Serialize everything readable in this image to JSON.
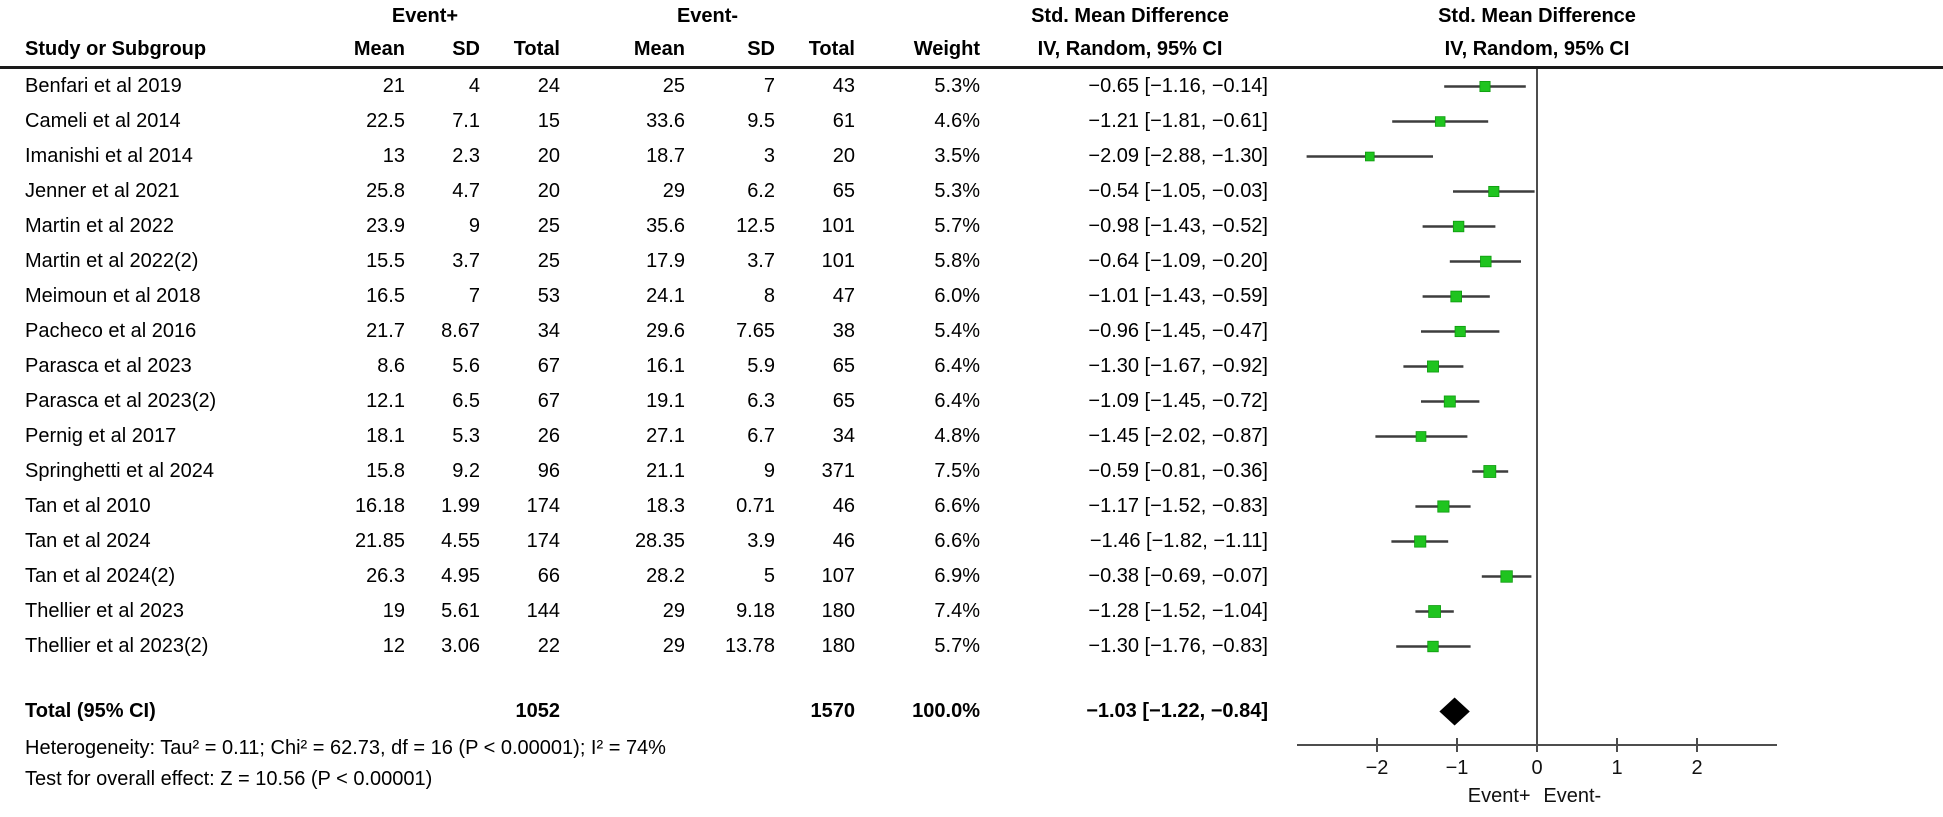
{
  "headers": {
    "study": "Study or Subgroup",
    "group1": "Event+",
    "group2": "Event-",
    "mean": "Mean",
    "sd": "SD",
    "total": "Total",
    "weight": "Weight",
    "smd_line1": "Std. Mean Difference",
    "smd_line2": "IV, Random, 95% CI",
    "plot_line1": "Std. Mean Difference",
    "plot_line2": "IV, Random, 95% CI"
  },
  "footnotes": {
    "heterogeneity": "Heterogeneity: Tau² = 0.11; Chi² = 62.73, df = 16 (P < 0.00001); I² = 74%",
    "overall_effect": "Test for overall effect: Z = 10.56 (P < 0.00001)"
  },
  "colors": {
    "marker_green": "#1fc41f",
    "marker_edge": "#0e9a0e",
    "ci_line": "#3d3d3d",
    "axis": "#4d4d4d",
    "diamond": "#000000",
    "rule": "#1a1a1a"
  },
  "chart_data": {
    "type": "forest",
    "effect_measure": "Std. Mean Difference",
    "method": "IV, Random, 95% CI",
    "xlim": [
      -3,
      3
    ],
    "ticks": [
      -2,
      -1,
      0,
      1,
      2
    ],
    "tick_labels": [
      "−2",
      "−1",
      "0",
      "1",
      "2"
    ],
    "axis_left_label": "Event+",
    "axis_right_label": "Event-",
    "studies": [
      {
        "name": "Benfari et al 2019",
        "mean1": "21",
        "sd1": "4",
        "total1": "24",
        "mean2": "25",
        "sd2": "7",
        "total2": "43",
        "weight": "5.3%",
        "ci": "−0.65 [−1.16, −0.14]",
        "smd": -0.65,
        "low": -1.16,
        "high": -0.14
      },
      {
        "name": "Cameli et al 2014",
        "mean1": "22.5",
        "sd1": "7.1",
        "total1": "15",
        "mean2": "33.6",
        "sd2": "9.5",
        "total2": "61",
        "weight": "4.6%",
        "ci": "−1.21 [−1.81, −0.61]",
        "smd": -1.21,
        "low": -1.81,
        "high": -0.61
      },
      {
        "name": "Imanishi et al 2014",
        "mean1": "13",
        "sd1": "2.3",
        "total1": "20",
        "mean2": "18.7",
        "sd2": "3",
        "total2": "20",
        "weight": "3.5%",
        "ci": "−2.09 [−2.88, −1.30]",
        "smd": -2.09,
        "low": -2.88,
        "high": -1.3
      },
      {
        "name": "Jenner et al 2021",
        "mean1": "25.8",
        "sd1": "4.7",
        "total1": "20",
        "mean2": "29",
        "sd2": "6.2",
        "total2": "65",
        "weight": "5.3%",
        "ci": "−0.54 [−1.05, −0.03]",
        "smd": -0.54,
        "low": -1.05,
        "high": -0.03
      },
      {
        "name": "Martin et al 2022",
        "mean1": "23.9",
        "sd1": "9",
        "total1": "25",
        "mean2": "35.6",
        "sd2": "12.5",
        "total2": "101",
        "weight": "5.7%",
        "ci": "−0.98 [−1.43, −0.52]",
        "smd": -0.98,
        "low": -1.43,
        "high": -0.52
      },
      {
        "name": "Martin et al 2022(2)",
        "mean1": "15.5",
        "sd1": "3.7",
        "total1": "25",
        "mean2": "17.9",
        "sd2": "3.7",
        "total2": "101",
        "weight": "5.8%",
        "ci": "−0.64 [−1.09, −0.20]",
        "smd": -0.64,
        "low": -1.09,
        "high": -0.2
      },
      {
        "name": "Meimoun et al 2018",
        "mean1": "16.5",
        "sd1": "7",
        "total1": "53",
        "mean2": "24.1",
        "sd2": "8",
        "total2": "47",
        "weight": "6.0%",
        "ci": "−1.01 [−1.43, −0.59]",
        "smd": -1.01,
        "low": -1.43,
        "high": -0.59
      },
      {
        "name": "Pacheco et al 2016",
        "mean1": "21.7",
        "sd1": "8.67",
        "total1": "34",
        "mean2": "29.6",
        "sd2": "7.65",
        "total2": "38",
        "weight": "5.4%",
        "ci": "−0.96 [−1.45, −0.47]",
        "smd": -0.96,
        "low": -1.45,
        "high": -0.47
      },
      {
        "name": "Parasca et al 2023",
        "mean1": "8.6",
        "sd1": "5.6",
        "total1": "67",
        "mean2": "16.1",
        "sd2": "5.9",
        "total2": "65",
        "weight": "6.4%",
        "ci": "−1.30 [−1.67, −0.92]",
        "smd": -1.3,
        "low": -1.67,
        "high": -0.92
      },
      {
        "name": "Parasca et al 2023(2)",
        "mean1": "12.1",
        "sd1": "6.5",
        "total1": "67",
        "mean2": "19.1",
        "sd2": "6.3",
        "total2": "65",
        "weight": "6.4%",
        "ci": "−1.09 [−1.45, −0.72]",
        "smd": -1.09,
        "low": -1.45,
        "high": -0.72
      },
      {
        "name": "Pernig et al 2017",
        "mean1": "18.1",
        "sd1": "5.3",
        "total1": "26",
        "mean2": "27.1",
        "sd2": "6.7",
        "total2": "34",
        "weight": "4.8%",
        "ci": "−1.45 [−2.02, −0.87]",
        "smd": -1.45,
        "low": -2.02,
        "high": -0.87
      },
      {
        "name": "Springhetti et al 2024",
        "mean1": "15.8",
        "sd1": "9.2",
        "total1": "96",
        "mean2": "21.1",
        "sd2": "9",
        "total2": "371",
        "weight": "7.5%",
        "ci": "−0.59 [−0.81, −0.36]",
        "smd": -0.59,
        "low": -0.81,
        "high": -0.36
      },
      {
        "name": "Tan et al 2010",
        "mean1": "16.18",
        "sd1": "1.99",
        "total1": "174",
        "mean2": "18.3",
        "sd2": "0.71",
        "total2": "46",
        "weight": "6.6%",
        "ci": "−1.17 [−1.52, −0.83]",
        "smd": -1.17,
        "low": -1.52,
        "high": -0.83
      },
      {
        "name": "Tan et al 2024",
        "mean1": "21.85",
        "sd1": "4.55",
        "total1": "174",
        "mean2": "28.35",
        "sd2": "3.9",
        "total2": "46",
        "weight": "6.6%",
        "ci": "−1.46 [−1.82, −1.11]",
        "smd": -1.46,
        "low": -1.82,
        "high": -1.11
      },
      {
        "name": "Tan et al 2024(2)",
        "mean1": "26.3",
        "sd1": "4.95",
        "total1": "66",
        "mean2": "28.2",
        "sd2": "5",
        "total2": "107",
        "weight": "6.9%",
        "ci": "−0.38 [−0.69, −0.07]",
        "smd": -0.38,
        "low": -0.69,
        "high": -0.07
      },
      {
        "name": "Thellier et al 2023",
        "mean1": "19",
        "sd1": "5.61",
        "total1": "144",
        "mean2": "29",
        "sd2": "9.18",
        "total2": "180",
        "weight": "7.4%",
        "ci": "−1.28 [−1.52, −1.04]",
        "smd": -1.28,
        "low": -1.52,
        "high": -1.04
      },
      {
        "name": "Thellier et al 2023(2)",
        "mean1": "12",
        "sd1": "3.06",
        "total1": "22",
        "mean2": "29",
        "sd2": "13.78",
        "total2": "180",
        "weight": "5.7%",
        "ci": "−1.30 [−1.76, −0.83]",
        "smd": -1.3,
        "low": -1.76,
        "high": -0.83
      }
    ],
    "total": {
      "label": "Total (95% CI)",
      "total1": "1052",
      "total2": "1570",
      "weight": "100.0%",
      "ci": "−1.03 [−1.22, −0.84]",
      "smd": -1.03,
      "low": -1.22,
      "high": -0.84
    }
  }
}
